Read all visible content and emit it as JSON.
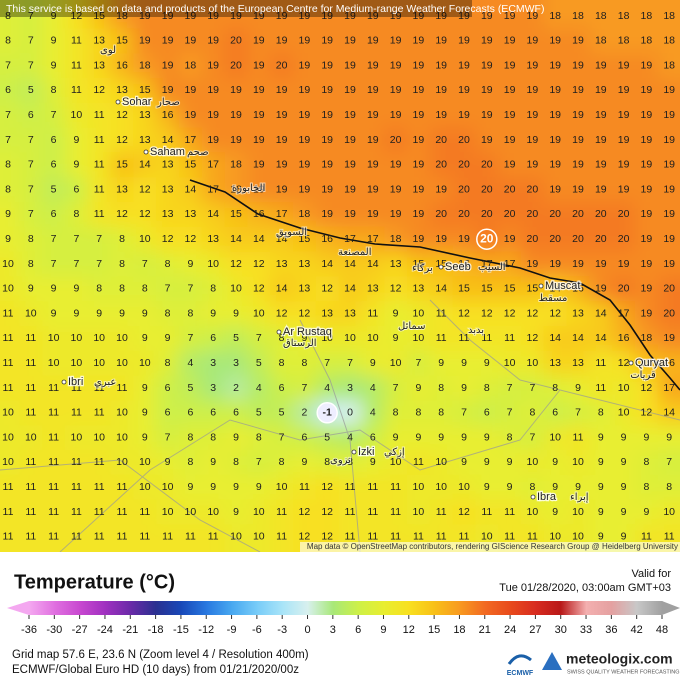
{
  "banner": "This service is based on data and products of the European Centre for Medium-range Weather Forecasts (ECMWF)",
  "attribution": "Map data © OpenStreetMap contributors, rendering GIScience Research Group @ Heidelberg University",
  "grid": {
    "rows": [
      [
        8,
        7,
        9,
        12,
        15,
        18,
        19,
        19,
        19,
        19,
        19,
        19,
        19,
        19,
        19,
        19,
        19,
        19,
        19,
        19,
        19,
        19,
        19,
        19,
        18,
        18,
        18,
        18,
        18,
        18
      ],
      [
        8,
        7,
        9,
        11,
        13,
        15,
        19,
        19,
        19,
        19,
        20,
        19,
        19,
        19,
        19,
        19,
        19,
        19,
        19,
        19,
        19,
        19,
        19,
        19,
        19,
        19,
        18,
        18,
        18,
        18
      ],
      [
        7,
        7,
        9,
        11,
        13,
        16,
        18,
        19,
        18,
        19,
        20,
        19,
        20,
        19,
        19,
        19,
        19,
        19,
        19,
        19,
        19,
        19,
        19,
        19,
        19,
        19,
        19,
        19,
        19,
        18
      ],
      [
        6,
        5,
        8,
        11,
        12,
        13,
        15,
        19,
        19,
        19,
        19,
        19,
        19,
        19,
        19,
        19,
        19,
        19,
        19,
        19,
        19,
        19,
        19,
        19,
        19,
        19,
        19,
        19,
        19,
        19
      ],
      [
        7,
        6,
        7,
        10,
        11,
        12,
        13,
        16,
        19,
        19,
        19,
        19,
        19,
        19,
        19,
        19,
        19,
        19,
        19,
        19,
        19,
        19,
        19,
        19,
        19,
        19,
        19,
        19,
        19,
        19
      ],
      [
        7,
        7,
        6,
        9,
        11,
        12,
        13,
        14,
        17,
        19,
        19,
        19,
        19,
        19,
        19,
        19,
        19,
        20,
        19,
        20,
        20,
        19,
        19,
        19,
        19,
        19,
        19,
        19,
        19,
        19
      ],
      [
        8,
        7,
        6,
        9,
        11,
        15,
        14,
        13,
        15,
        17,
        18,
        19,
        19,
        19,
        19,
        19,
        19,
        19,
        19,
        20,
        20,
        20,
        19,
        19,
        19,
        19,
        19,
        19,
        19,
        19
      ],
      [
        8,
        7,
        5,
        6,
        11,
        13,
        12,
        13,
        14,
        17,
        18,
        19,
        19,
        19,
        19,
        19,
        19,
        19,
        19,
        19,
        20,
        20,
        20,
        20,
        19,
        19,
        19,
        19,
        19,
        19
      ],
      [
        9,
        7,
        6,
        8,
        11,
        12,
        12,
        13,
        13,
        14,
        15,
        16,
        17,
        18,
        19,
        19,
        19,
        19,
        19,
        20,
        20,
        20,
        20,
        20,
        20,
        20,
        20,
        20,
        19,
        19
      ],
      [
        9,
        8,
        7,
        7,
        7,
        8,
        10,
        12,
        12,
        13,
        14,
        14,
        14,
        15,
        16,
        17,
        17,
        18,
        19,
        19,
        19,
        20,
        19,
        20,
        20,
        20,
        20,
        20,
        19,
        19
      ],
      [
        10,
        8,
        7,
        7,
        7,
        8,
        7,
        8,
        9,
        10,
        12,
        12,
        13,
        13,
        14,
        14,
        14,
        13,
        15,
        15,
        16,
        17,
        17,
        19,
        19,
        19,
        19,
        19,
        19,
        19
      ],
      [
        10,
        9,
        9,
        9,
        8,
        8,
        8,
        7,
        7,
        8,
        10,
        12,
        14,
        13,
        12,
        14,
        13,
        12,
        13,
        14,
        15,
        15,
        15,
        15,
        14,
        16,
        19,
        20,
        19,
        20
      ],
      [
        11,
        10,
        9,
        9,
        9,
        9,
        9,
        8,
        8,
        9,
        9,
        10,
        12,
        12,
        13,
        13,
        11,
        9,
        10,
        11,
        12,
        12,
        12,
        12,
        12,
        13,
        14,
        17,
        19,
        20
      ],
      [
        11,
        11,
        10,
        10,
        10,
        10,
        9,
        9,
        7,
        6,
        5,
        7,
        8,
        9,
        10,
        10,
        10,
        9,
        10,
        11,
        11,
        11,
        11,
        12,
        14,
        14,
        14,
        16,
        18,
        19
      ],
      [
        11,
        11,
        10,
        10,
        10,
        10,
        10,
        8,
        4,
        3,
        3,
        5,
        8,
        8,
        7,
        7,
        9,
        10,
        7,
        9,
        9,
        9,
        10,
        10,
        13,
        13,
        11,
        12,
        15,
        16
      ],
      [
        11,
        11,
        11,
        11,
        11,
        11,
        9,
        6,
        5,
        3,
        2,
        4,
        6,
        7,
        4,
        3,
        4,
        7,
        9,
        8,
        9,
        8,
        7,
        7,
        8,
        9,
        11,
        10,
        12,
        17
      ],
      [
        10,
        11,
        11,
        11,
        11,
        10,
        9,
        6,
        6,
        6,
        6,
        5,
        5,
        2,
        -1,
        0,
        4,
        8,
        8,
        8,
        7,
        6,
        7,
        8,
        6,
        7,
        8,
        10,
        12,
        14
      ],
      [
        10,
        10,
        11,
        10,
        10,
        10,
        9,
        7,
        8,
        8,
        9,
        8,
        7,
        6,
        5,
        4,
        6,
        9,
        9,
        9,
        9,
        9,
        8,
        7,
        10,
        11,
        9,
        9,
        9,
        9
      ],
      [
        10,
        11,
        11,
        11,
        11,
        10,
        10,
        9,
        8,
        9,
        8,
        7,
        8,
        9,
        8,
        8,
        9,
        10,
        11,
        10,
        9,
        9,
        9,
        10,
        9,
        10,
        9,
        9,
        8,
        7
      ],
      [
        11,
        11,
        11,
        11,
        11,
        11,
        10,
        10,
        9,
        9,
        9,
        9,
        10,
        11,
        12,
        11,
        11,
        11,
        10,
        10,
        10,
        9,
        9,
        8,
        9,
        9,
        9,
        9,
        8,
        8
      ],
      [
        11,
        11,
        11,
        11,
        11,
        11,
        11,
        10,
        10,
        10,
        9,
        10,
        11,
        12,
        12,
        11,
        11,
        11,
        10,
        11,
        12,
        11,
        11,
        10,
        9,
        10,
        9,
        9,
        9,
        10
      ],
      [
        11,
        11,
        11,
        11,
        11,
        11,
        11,
        11,
        11,
        11,
        10,
        10,
        11,
        12,
        12,
        11,
        11,
        11,
        11,
        11,
        11,
        10,
        11,
        11,
        10,
        10,
        9,
        9,
        11,
        11
      ]
    ]
  },
  "places": [
    {
      "name": "Sohar",
      "local": "صحار"
    },
    {
      "name": "Saham",
      "local": "صحم"
    },
    {
      "name": "Ar Rustaq",
      "local": "الرستاق"
    },
    {
      "name": "Ibri",
      "local": "عبري"
    },
    {
      "name": "Izki",
      "local": "إزكي"
    },
    {
      "name": "Seeb",
      "local": "السيب"
    },
    {
      "name": "Muscat",
      "local": "مسقط"
    },
    {
      "name": "Quryat",
      "local": "قريات"
    },
    {
      "name": "Ibra",
      "local": "إبراء"
    }
  ],
  "local_labels": [
    "لوى",
    "الخابورة",
    "السويق",
    "المصنعة",
    "بركاء",
    "سمائل",
    "بدبد",
    "نزوى"
  ],
  "legend": {
    "title": "Temperature (°C)",
    "valid_label": "Valid for",
    "valid_time": "Tue 01/28/2020, 03:00am GMT+03",
    "ticks": [
      -36,
      -30,
      -27,
      -24,
      -21,
      -18,
      -15,
      -12,
      -9,
      -6,
      -3,
      0,
      3,
      6,
      9,
      12,
      15,
      18,
      21,
      24,
      27,
      30,
      33,
      36,
      42,
      48
    ],
    "colors": [
      "#f4a8f0",
      "#e070e0",
      "#c848d0",
      "#a030c0",
      "#6a2aa8",
      "#2a3090",
      "#1848b8",
      "#2878e0",
      "#48a8f0",
      "#78ccf8",
      "#a8e4f8",
      "#d8f0ee",
      "#a8e878",
      "#cdf048",
      "#e8ee30",
      "#f8e020",
      "#f8c018",
      "#f89a20",
      "#f26a22",
      "#e84a1c",
      "#d82c20",
      "#b81818",
      "#f4b0b0",
      "#e4a0a0",
      "#c8c8c8",
      "#a0a0a0"
    ]
  },
  "info": {
    "line1": "Grid map 57.6 E, 23.6 N (Zoom level 4 / Resolution 400m)",
    "line2": "ECMWF/Global Euro HD (10 days) from  01/21/2020/00z"
  },
  "brand": {
    "ecmwf": "ECMWF",
    "name": "meteologix.com",
    "tagline": "SWISS QUALITY WEATHER FORECASTING"
  }
}
